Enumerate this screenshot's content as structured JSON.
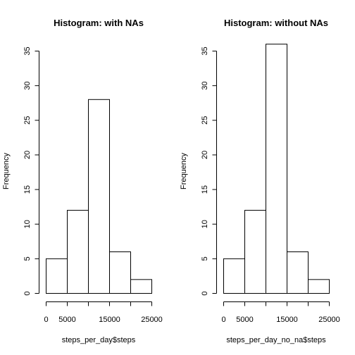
{
  "chart_data": [
    {
      "type": "bar",
      "title": "Histogram: with NAs",
      "xlabel": "steps_per_day$steps",
      "ylabel": "Frequency",
      "bins": [
        [
          0,
          5000
        ],
        [
          5000,
          10000
        ],
        [
          10000,
          15000
        ],
        [
          15000,
          20000
        ],
        [
          20000,
          25000
        ]
      ],
      "values": [
        5,
        12,
        28,
        6,
        2
      ],
      "xlim": [
        0,
        25000
      ],
      "ylim": [
        0,
        35
      ],
      "x_ticks": [
        0,
        5000,
        15000,
        25000
      ],
      "x_tick_marks": [
        0,
        5000,
        10000,
        15000,
        20000,
        25000
      ],
      "y_ticks": [
        0,
        5,
        10,
        15,
        20,
        25,
        30,
        35
      ],
      "grid": false
    },
    {
      "type": "bar",
      "title": "Histogram: without NAs",
      "xlabel": "steps_per_day_no_na$steps",
      "ylabel": "Frequency",
      "bins": [
        [
          0,
          5000
        ],
        [
          5000,
          10000
        ],
        [
          10000,
          15000
        ],
        [
          15000,
          20000
        ],
        [
          20000,
          25000
        ]
      ],
      "values": [
        5,
        12,
        36,
        6,
        2
      ],
      "xlim": [
        0,
        25000
      ],
      "ylim": [
        0,
        35
      ],
      "x_ticks": [
        0,
        5000,
        15000,
        25000
      ],
      "x_tick_marks": [
        0,
        5000,
        10000,
        15000,
        20000,
        25000
      ],
      "y_ticks": [
        0,
        5,
        10,
        15,
        20,
        25,
        30,
        35
      ],
      "grid": false
    }
  ]
}
